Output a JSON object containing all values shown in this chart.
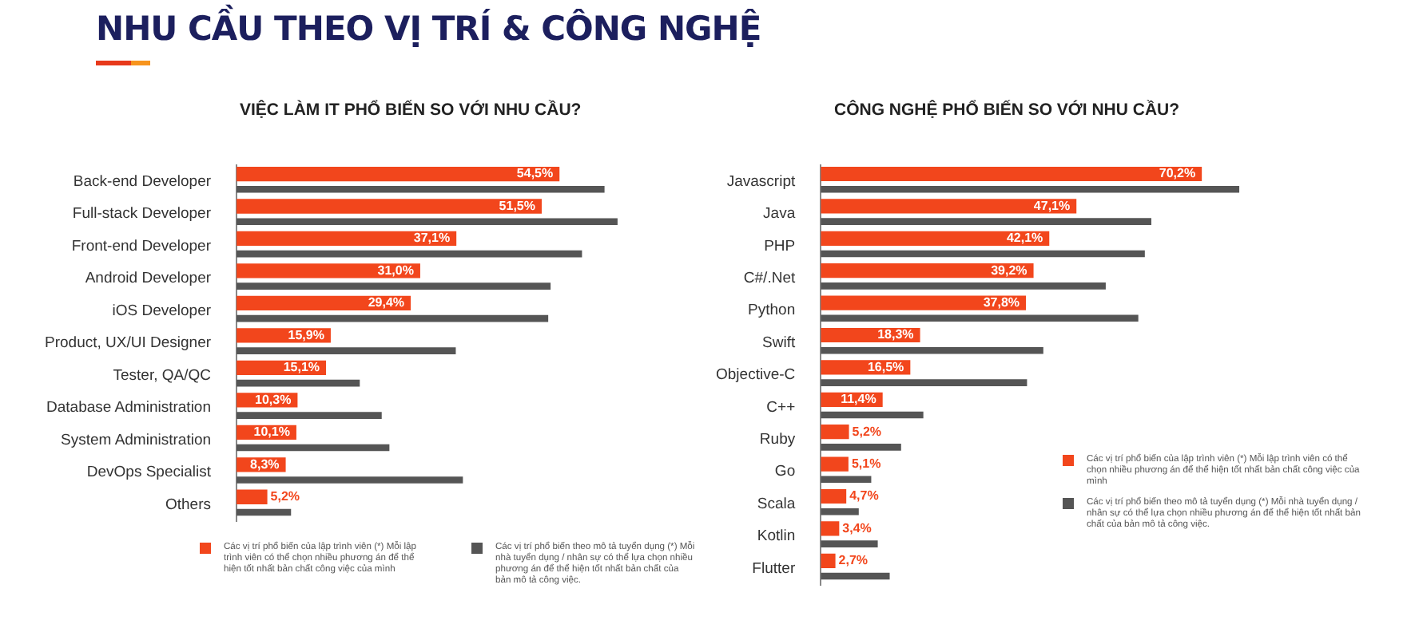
{
  "chart_data": [
    {
      "type": "bar",
      "orientation": "horizontal",
      "title": "VIỆC LÀM IT PHỔ BIẾN SO VỚI NHU CẦU?",
      "annotations": [
        "NHU CẦU THEO VỊ TRÍ & CÔNG NGHỆ"
      ],
      "categories": [
        "Back-end Developer",
        "Full-stack Developer",
        "Front-end Developer",
        "Android Developer",
        "iOS Developer",
        "Product, UX/UI Designer",
        "Tester, QA/QC",
        "Database Administration",
        "System Administration",
        "DevOps Specialist",
        "Others"
      ],
      "series": [
        {
          "name": "Các vị trí phổ biến của lập trình viên (*) Mỗi lập trình viên có thể chọn nhiều phương án để thể hiện tốt nhất bản chất công việc của mình",
          "color": "#f2461c",
          "values": [
            54.5,
            51.5,
            37.1,
            31.0,
            29.4,
            15.9,
            15.1,
            10.3,
            10.1,
            8.3,
            5.2
          ],
          "value_labels": [
            "54,5%",
            "51,5%",
            "37,1%",
            "31,0%",
            "29,4%",
            "15,9%",
            "15,1%",
            "10,3%",
            "10,1%",
            "8,3%",
            "5,2%"
          ]
        },
        {
          "name": "Các vị trí phổ biến theo mô tả tuyển dụng (*) Mỗi nhà tuyển dụng / nhân sự có thể lựa chọn nhiều phương án để thể hiện tốt nhất bản chất của bản mô tả công việc.",
          "color": "#555555",
          "values": [
            62.1,
            64.3,
            58.3,
            53.0,
            52.6,
            37.0,
            20.8,
            24.5,
            25.8,
            38.2,
            9.2
          ]
        }
      ],
      "legend": "bottom"
    },
    {
      "type": "bar",
      "orientation": "horizontal",
      "title": "CÔNG NGHỆ PHỔ BIẾN SO VỚI NHU CẦU?",
      "categories": [
        "Javascript",
        "Java",
        "PHP",
        "C#/.Net",
        "Python",
        "Swift",
        "Objective-C",
        "C++",
        "Ruby",
        "Go",
        "Scala",
        "Kotlin",
        "Flutter"
      ],
      "series": [
        {
          "name": "Các vị trí phổ biến của lập trình viên (*) Mỗi lập trình viên có thể chọn nhiều phương án để thể hiện tốt nhất bản chất công việc của mình",
          "color": "#f2461c",
          "values": [
            70.2,
            47.1,
            42.1,
            39.2,
            37.8,
            18.3,
            16.5,
            11.4,
            5.2,
            5.1,
            4.7,
            3.4,
            2.7
          ],
          "value_labels": [
            "70,2%",
            "47,1%",
            "42,1%",
            "39,2%",
            "37,8%",
            "18,3%",
            "16,5%",
            "11,4%",
            "5,2%",
            "5,1%",
            "4,7%",
            "3,4%",
            "2,7%"
          ]
        },
        {
          "name": "Các vị trí phổ biến theo mô tả tuyển dụng (*) Mỗi nhà tuyển dụng / nhân sự có thể lựa chọn nhiều phương án để thể hiện tốt nhất bản chất của bản mô tả công việc.",
          "color": "#555555",
          "values": [
            77.1,
            60.9,
            59.7,
            52.5,
            58.5,
            41.0,
            38.0,
            18.9,
            14.8,
            9.3,
            7.0,
            10.5,
            12.7
          ]
        }
      ],
      "legend": "bottom right"
    }
  ]
}
